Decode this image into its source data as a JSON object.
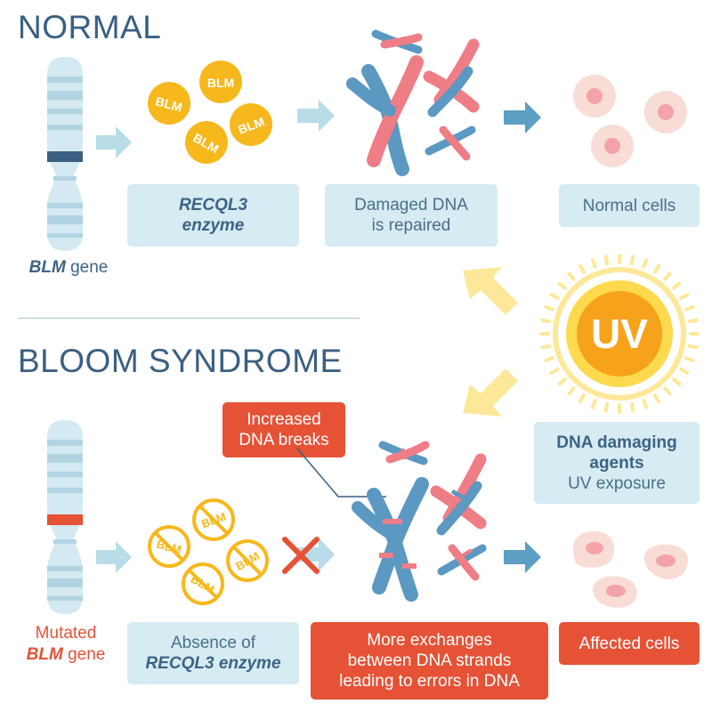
{
  "normal": {
    "title": "NORMAL",
    "gene_label_italic": "BLM",
    "gene_label_rest": " gene",
    "enzyme_line1": "RECQL3",
    "enzyme_line2": "enzyme",
    "repaired_line1": "Damaged DNA",
    "repaired_line2": "is repaired",
    "cells_label": "Normal cells",
    "blm_token": "BLM"
  },
  "uv": {
    "badge": "UV",
    "line1": "DNA damaging",
    "line2": "agents",
    "line3": "UV exposure"
  },
  "bloom": {
    "title": "BLOOM SYNDROME",
    "gene_line1": "Mutated",
    "gene_line2_italic": "BLM",
    "gene_line2_rest": " gene",
    "breaks_line1": "Increased",
    "breaks_line2": "DNA breaks",
    "absence_line1": "Absence of",
    "absence_line2": "RECQL3 enzyme",
    "exchanges_line1": "More exchanges",
    "exchanges_line2": "between DNA strands",
    "exchanges_line3": "leading to errors in DNA",
    "cells_label": "Affected cells",
    "blm_token": "BLM"
  },
  "colors": {
    "title_blue": "#3a5f82",
    "box_fill": "#d6ebf2",
    "arrow_blue": "#b8dce8",
    "dark_arrow": "#5c9ec4",
    "chromo_blue": "#5b98c2",
    "chromo_pink": "#ef7d86",
    "enzyme_yellow": "#f6b81c",
    "alert_red": "#e55236",
    "sun_orange": "#f7a21b",
    "cell_pink": "#f4c4c4"
  }
}
